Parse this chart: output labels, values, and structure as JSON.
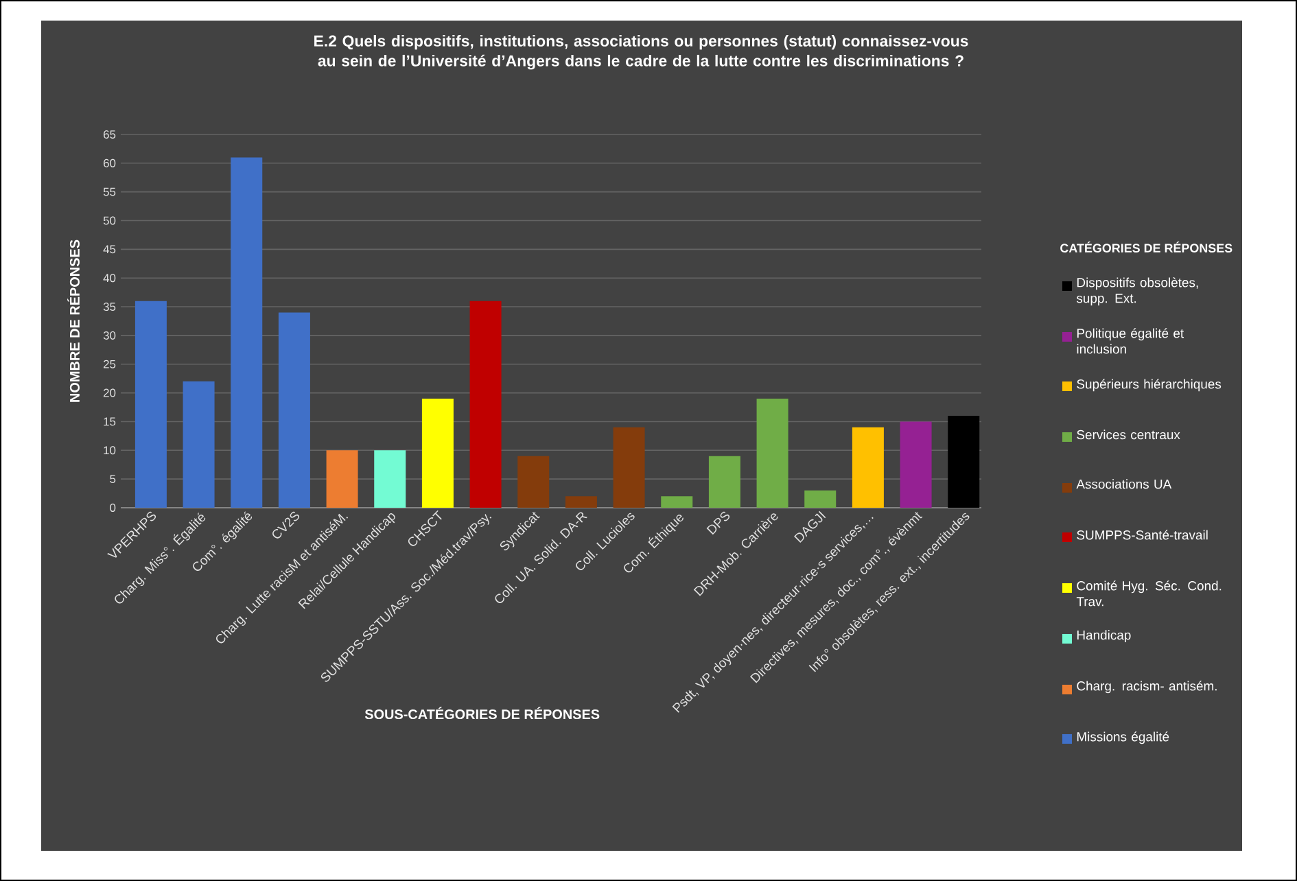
{
  "chart_data": {
    "type": "bar",
    "title": "E.2 Quels dispositifs, institutions, associations ou personnes (statut) connaissez-vous au sein de l’Université d’Angers dans le cadre de la lutte contre les discriminations ?",
    "xlabel": "SOUS-CATÉGORIES DE RÉPONSES",
    "ylabel": "NOMBRE DE RÉPONSES",
    "legend_title": "CATÉGORIES DE RÉPONSES",
    "categories": [
      "VPERHPS",
      "Charg. Miss°. Égalité",
      "Com°. égalité",
      "CV2S",
      "Charg. Lutte racisM et antiséM.",
      "Relai/Cellule Handicap",
      "CHSCT",
      "SUMPPS-SSTU/Ass. Soc./Méd.trav/Psy.",
      "Syndicat",
      "Coll. UA. Solid. DA-R",
      "Coll. Lucioles",
      "Com. Éthique",
      "DPS",
      "DRH-Mob. Carrière",
      "DAGJI",
      "Psdt, VP, doyen·nes, directeur·rice·s services,…",
      "Directives, mesures, doc., com°., évènmt",
      "Info° obsolètes, ress. ext., incertitudes"
    ],
    "series": [
      {
        "name": "Dispositifs obsolètes, supp. Ext.",
        "color": "#000000",
        "values": [
          null,
          null,
          null,
          null,
          null,
          null,
          null,
          null,
          null,
          null,
          null,
          null,
          null,
          null,
          null,
          null,
          null,
          16
        ]
      },
      {
        "name": "Politique égalité et inclusion",
        "color": "#952193",
        "values": [
          null,
          null,
          null,
          null,
          null,
          null,
          null,
          null,
          null,
          null,
          null,
          null,
          null,
          null,
          null,
          null,
          15,
          null
        ]
      },
      {
        "name": "Supérieurs hiérarchiques",
        "color": "#ffc000",
        "values": [
          null,
          null,
          null,
          null,
          null,
          null,
          null,
          null,
          null,
          null,
          null,
          null,
          null,
          null,
          null,
          14,
          null,
          null
        ]
      },
      {
        "name": "Services centraux",
        "color": "#70ad47",
        "values": [
          null,
          null,
          null,
          null,
          null,
          null,
          null,
          null,
          null,
          null,
          null,
          2,
          9,
          19,
          3,
          null,
          null,
          null
        ]
      },
      {
        "name": "Associations UA",
        "color": "#843c0c",
        "values": [
          null,
          null,
          null,
          null,
          null,
          null,
          null,
          null,
          9,
          2,
          14,
          null,
          null,
          null,
          null,
          null,
          null,
          null
        ]
      },
      {
        "name": "SUMPPS-Santé-travail",
        "color": "#c00000",
        "values": [
          null,
          null,
          null,
          null,
          null,
          null,
          null,
          36,
          null,
          null,
          null,
          null,
          null,
          null,
          null,
          null,
          null,
          null
        ]
      },
      {
        "name": "Comité Hyg. Séc. Cond. Trav.",
        "color": "#ffff00",
        "values": [
          null,
          null,
          null,
          null,
          null,
          null,
          19,
          null,
          null,
          null,
          null,
          null,
          null,
          null,
          null,
          null,
          null,
          null
        ]
      },
      {
        "name": "Handicap",
        "color": "#73fbd3",
        "values": [
          null,
          null,
          null,
          null,
          null,
          10,
          null,
          null,
          null,
          null,
          null,
          null,
          null,
          null,
          null,
          null,
          null,
          null
        ]
      },
      {
        "name": "Charg. racism- antisém.",
        "color": "#ed7d31",
        "values": [
          null,
          null,
          null,
          null,
          10,
          null,
          null,
          null,
          null,
          null,
          null,
          null,
          null,
          null,
          null,
          null,
          null,
          null
        ]
      },
      {
        "name": "Missions égalité",
        "color": "#4070c8",
        "values": [
          36,
          22,
          61,
          34,
          null,
          null,
          null,
          null,
          null,
          null,
          null,
          null,
          null,
          null,
          null,
          null,
          null,
          null
        ]
      }
    ],
    "ylim": [
      0,
      65
    ],
    "yticks": [
      0,
      5,
      10,
      15,
      20,
      25,
      30,
      35,
      40,
      45,
      50,
      55,
      60,
      65
    ],
    "grid": "y",
    "legend": "right"
  }
}
